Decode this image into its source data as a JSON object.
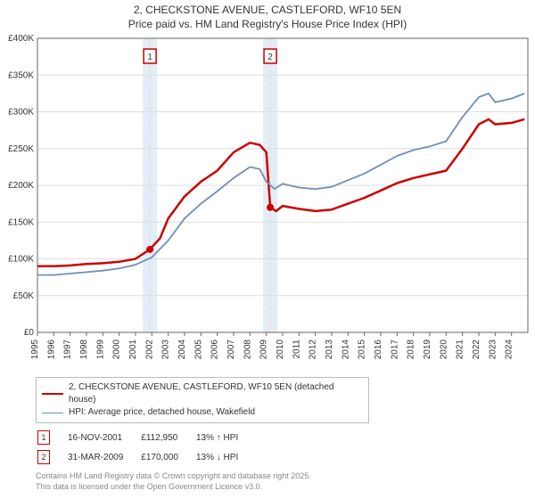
{
  "title_line1": "2, CHECKSTONE AVENUE, CASTLEFORD, WF10 5EN",
  "title_line2": "Price paid vs. HM Land Registry's House Price Index (HPI)",
  "chart": {
    "type": "line",
    "xlim": [
      1995,
      2025
    ],
    "ylim": [
      0,
      400000
    ],
    "ytick_step": 50000,
    "ytick_labels": [
      "£0",
      "£50K",
      "£100K",
      "£150K",
      "£200K",
      "£250K",
      "£300K",
      "£350K",
      "£400K"
    ],
    "xtick_years": [
      1995,
      1996,
      1997,
      1998,
      1999,
      2000,
      2001,
      2002,
      2003,
      2004,
      2005,
      2006,
      2007,
      2008,
      2009,
      2010,
      2011,
      2012,
      2013,
      2014,
      2015,
      2016,
      2017,
      2018,
      2019,
      2020,
      2021,
      2022,
      2023,
      2024
    ],
    "background_color": "#ffffff",
    "grid_color": "#dddddd",
    "axis_color": "#666666",
    "vband_color": "#d8e8f4",
    "vline_color": "#f8cfcf",
    "marker_box_border": "#cc0000",
    "marker_box_text": "#333333",
    "series": [
      {
        "label": "2, CHECKSTONE AVENUE, CASTLEFORD, WF10 5EN (detached house)",
        "color": "#cc0000",
        "width": 2.5,
        "points": [
          [
            1995,
            90000
          ],
          [
            1996,
            90000
          ],
          [
            1997,
            91000
          ],
          [
            1998,
            93000
          ],
          [
            1999,
            94000
          ],
          [
            2000,
            96000
          ],
          [
            2001,
            100000
          ],
          [
            2001.88,
            112950
          ],
          [
            2002.5,
            128000
          ],
          [
            2003,
            155000
          ],
          [
            2004,
            185000
          ],
          [
            2005,
            205000
          ],
          [
            2006,
            220000
          ],
          [
            2007,
            245000
          ],
          [
            2008,
            258000
          ],
          [
            2008.6,
            255000
          ],
          [
            2009,
            245000
          ],
          [
            2009.24,
            170000
          ],
          [
            2009.6,
            165000
          ],
          [
            2010,
            172000
          ],
          [
            2011,
            168000
          ],
          [
            2012,
            165000
          ],
          [
            2013,
            167000
          ],
          [
            2014,
            175000
          ],
          [
            2015,
            183000
          ],
          [
            2016,
            193000
          ],
          [
            2017,
            203000
          ],
          [
            2018,
            210000
          ],
          [
            2019,
            215000
          ],
          [
            2020,
            220000
          ],
          [
            2021,
            250000
          ],
          [
            2022,
            283000
          ],
          [
            2022.6,
            290000
          ],
          [
            2023,
            283000
          ],
          [
            2024,
            285000
          ],
          [
            2024.8,
            290000
          ]
        ],
        "dot_at": [
          2001.88,
          112950
        ]
      },
      {
        "label": "HPI: Average price, detached house, Wakefield",
        "color": "#6f8fb8",
        "width": 1.8,
        "points": [
          [
            1995,
            78000
          ],
          [
            1996,
            78000
          ],
          [
            1997,
            80000
          ],
          [
            1998,
            82000
          ],
          [
            1999,
            84000
          ],
          [
            2000,
            87000
          ],
          [
            2001,
            92000
          ],
          [
            2002,
            102000
          ],
          [
            2003,
            125000
          ],
          [
            2004,
            155000
          ],
          [
            2005,
            175000
          ],
          [
            2006,
            192000
          ],
          [
            2007,
            210000
          ],
          [
            2008,
            225000
          ],
          [
            2008.6,
            222000
          ],
          [
            2009,
            205000
          ],
          [
            2009.5,
            195000
          ],
          [
            2010,
            202000
          ],
          [
            2011,
            197000
          ],
          [
            2012,
            195000
          ],
          [
            2013,
            198000
          ],
          [
            2014,
            207000
          ],
          [
            2015,
            216000
          ],
          [
            2016,
            228000
          ],
          [
            2017,
            240000
          ],
          [
            2018,
            248000
          ],
          [
            2019,
            253000
          ],
          [
            2020,
            260000
          ],
          [
            2021,
            293000
          ],
          [
            2022,
            320000
          ],
          [
            2022.6,
            325000
          ],
          [
            2023,
            313000
          ],
          [
            2024,
            318000
          ],
          [
            2024.8,
            325000
          ]
        ]
      }
    ],
    "event_bands": [
      {
        "x": 2001.88,
        "label": "1"
      },
      {
        "x": 2009.24,
        "label": "2"
      }
    ]
  },
  "legend": {
    "row1": "2, CHECKSTONE AVENUE, CASTLEFORD, WF10 5EN (detached house)",
    "row2": "HPI: Average price, detached house, Wakefield"
  },
  "markers": [
    {
      "num": "1",
      "date": "16-NOV-2001",
      "price": "£112,950",
      "delta": "13% ↑ HPI"
    },
    {
      "num": "2",
      "date": "31-MAR-2009",
      "price": "£170,000",
      "delta": "13% ↓ HPI"
    }
  ],
  "footer1": "Contains HM Land Registry data © Crown copyright and database right 2025.",
  "footer2": "This data is licensed under the Open Government Licence v3.0."
}
